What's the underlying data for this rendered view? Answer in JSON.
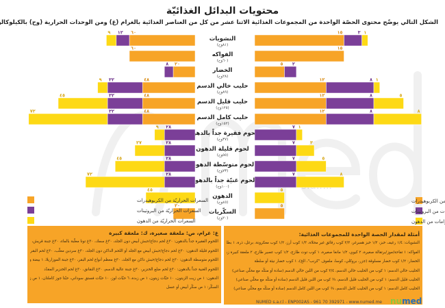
{
  "header": {
    "title": "محتويات البدائل الغذائيّة",
    "subtitle": "الشكل التالي يوضّح محتوى الحصّة الواحدة من المجموعات الغذائية الاثنا عشر من كل من العناصر الغذائية بالغرام (غ) ومن الوحدات الحرارية (وح) بالكيلوكالوري"
  },
  "colors": {
    "carbs": "#F7A427",
    "protein": "#7B3F98",
    "fat": "#FDD915",
    "fat_label": "#D6A514",
    "carbs_label": "#D98B12",
    "protein_label": "#6A2E88"
  },
  "chart_data": {
    "type": "bar",
    "orientation": "horizontal-butterfly",
    "left_unit": "kcal",
    "right_unit": "g",
    "categories": [
      {
        "name": "النشويات",
        "kcal": "(٨١وح)"
      },
      {
        "name": "الفواكه",
        "kcal": "(٦٠وح)"
      },
      {
        "name": "الخضار",
        "kcal": "(٢٨وح)"
      },
      {
        "name": "حليب خالي الدسم",
        "kcal": "(٨٩وح)"
      },
      {
        "name": "حليب قليل الدسم",
        "kcal": "(١٢٥وح)"
      },
      {
        "name": "حليب كامل الدسم",
        "kcal": "(١٥٢وح)"
      },
      {
        "name": "لحوم فقيرة جداً بالدهون",
        "kcal": "(٣٧وح)"
      },
      {
        "name": "لحوم قليلة الدهون",
        "kcal": "(٥٥وح)"
      },
      {
        "name": "لحوم متوسّطة الدهون",
        "kcal": "(٧٣وح)"
      },
      {
        "name": "لحوم غنيّة جداً بالدهون",
        "kcal": "(١٠٠وح)"
      },
      {
        "name": "الدهون",
        "kcal": "(٤٥وح)"
      },
      {
        "name": "السكّريات",
        "kcal": "(٢٠وح)"
      }
    ],
    "calories": {
      "carbs": [
        60,
        60,
        20,
        48,
        48,
        48,
        0,
        0,
        0,
        0,
        0,
        20
      ],
      "protein": [
        12,
        0,
        8,
        32,
        32,
        32,
        28,
        28,
        28,
        28,
        0,
        0
      ],
      "fat": [
        9,
        0,
        0,
        9,
        45,
        72,
        9,
        27,
        45,
        72,
        45,
        0
      ]
    },
    "grams": {
      "carbs": [
        15,
        15,
        5,
        12,
        12,
        12,
        0,
        0,
        0,
        0,
        0,
        5
      ],
      "protein": [
        3,
        0,
        2,
        8,
        8,
        8,
        7,
        7,
        7,
        7,
        0,
        0
      ],
      "fat": [
        1,
        0,
        0,
        1,
        5,
        8,
        1,
        3,
        5,
        8,
        5,
        0
      ]
    },
    "legend_left": [
      "السعرات الحراريّة من الكربوهيدرات",
      "السعرات الحراريّة من البروتينات",
      "السعرات الحراريّة من الدهون"
    ],
    "legend_right": [
      "الغرامات من الكربوهيدرات",
      "الغرامات من البروتينات",
      "الغرامات من الدهون"
    ]
  },
  "left_box": {
    "head": "غ: غرام، ص: ملعقة صغيرة، ك: ملعقة كبيرة",
    "lines": [
      "اللحوم الفقيرة جداً بالدهون: ٣٠غ لحم دجاج/حبش أبيض دون الجلد، ٣٠غ سمك، ٣٠غ تونا معلّبة بالماء، ٣٠غ جبنة قريش، ١ بياض البيض",
      "اللحوم قليلة الدهون: ٣٠غ لحم دجاج/حبش أبيض مع الجلد أو اللحم الداكن دون الجلد، ٣٠غ سردين معلّب، ٣٠غ لحم البقر قليل الدهون",
      "اللحوم متوسطة الدهون: ٣٠غ لحم دجاج/حبش داكن مع الجلد، ٣٠غ معظم أنواع لحم البقر، ٣٠غ جبنة الموزاريلا، ١ بيضة واحدة",
      "اللحوم الغنية جداً بالدهون: ٣٠غ لحم ضلع الخنزير، ٣٠غ جبنة عالية الدسم، ٣٠غ النقانق، ٣٠غ لحم الخنزير المقدّد",
      "الدهون: ١ ص زيت الزيتون، ١٠ حبّات زيتون، ١ ص زبدة، ٦ حبّات لوز، ١٠ حبّات فستق سوداني، حبّتا جوز كاملتان، ١ ص زبدة",
      "السكّر: ١ ص سكّر أبيض أو عسل"
    ]
  },
  "right_box": {
    "head": "أمثلة لمقدار الحصة الواحدة للمجموعات الغذائية:",
    "lines": [
      "النشويات: ١/٤ رغيف خبز، ١/٢ خبز همبرغر، ٢/٣ كوب رقائق غير محلاة، ١/٣ كوب أرز، ١/٢ كوب معكرونة، برغل، ذرة، ١ بطاطس صغيرة",
      "الفواكه: ١ تفاحة/موز/برتقالة صغيرة، ٢ كيوي، ١/٢ مانغا صغيرة، ١ كوب توت طازج، ١/٢ كوب عصير طازج، ٢ ملعقة كبيرة زبيب",
      "الخضار: ١/٢ كوب خضار مسلوقة (جزر، بروكلي، كوسا، ملفوف \"كرنب\"، الخ)، ١ كوب خضار نيئة أو سلطة",
      "الحليب خالي الدسم: ١ كوب من الحليب خالي الدسم، ٣/٤ كوب من اللبن خالي الدسم (سادة أو منكّه مع محلّي صناعي)",
      "الحليب قليل الدسم: ١ كوب من الحليب قليل الدسم، ¾ كوب من اللبن قليل الدسم (سادة أو منكّه مع محلّي صناعي)",
      "الحليب كامل الدسم: ١ كوب من الحليب كامل الدسم، ¾ كوب من اللبن كامل الدسم (سادة أو منكّه مع محلّي صناعي)"
    ]
  },
  "footer": {
    "text": "NUMED s.a.r.l - ENP002AS - 961 70 392971 - www.numed.me",
    "logo_a": "nu",
    "logo_b": "med",
    "watermark": "numed",
    "watermark_sub": "s.a.r.l."
  }
}
